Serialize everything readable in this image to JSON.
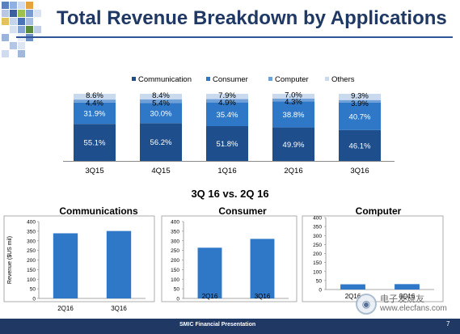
{
  "slide": {
    "title": "Total Revenue Breakdown by Applications",
    "comparison_heading": "3Q 16 vs. 2Q 16",
    "footer": "SMIC Financial Presentation",
    "page_number": "7",
    "watermark_cn": "电子发烧友",
    "watermark_url": "www.elecfans.com"
  },
  "colors": {
    "title_text": "#1f3864",
    "title_rule": "#2f5597",
    "communication": "#1f4e8c",
    "consumer": "#2f78c8",
    "computer": "#6fa0d8",
    "others": "#c9d9ee",
    "footer_bar": "#1f3864"
  },
  "chart_data": [
    {
      "type": "bar",
      "stacked": true,
      "categories": [
        "3Q15",
        "4Q15",
        "1Q16",
        "2Q16",
        "3Q16"
      ],
      "series": [
        {
          "name": "Communication",
          "values": [
            55.1,
            56.2,
            51.8,
            49.9,
            46.1
          ],
          "labels": [
            "55.1%",
            "56.2%",
            "51.8%",
            "49.9%",
            "46.1%"
          ]
        },
        {
          "name": "Consumer",
          "values": [
            31.9,
            30.0,
            35.4,
            38.8,
            40.7
          ],
          "labels": [
            "31.9%",
            "30.0%",
            "35.4%",
            "38.8%",
            "40.7%"
          ]
        },
        {
          "name": "Computer",
          "values": [
            4.4,
            5.4,
            4.9,
            4.3,
            3.9
          ],
          "labels": [
            "4.4%",
            "5.4%",
            "4.9%",
            "4.3%",
            "3.9%"
          ]
        },
        {
          "name": "Others",
          "values": [
            8.6,
            8.4,
            7.9,
            7.0,
            9.3
          ],
          "labels": [
            "8.6%",
            "8.4%",
            "7.9%",
            "7.0%",
            "9.3%"
          ]
        }
      ],
      "ylim": [
        0,
        100
      ],
      "legend": "top-right"
    },
    {
      "type": "bar",
      "title": "Communications",
      "ylabel": "Revenue ($US mil)",
      "categories": [
        "2Q16",
        "3Q16"
      ],
      "values": [
        339,
        351
      ],
      "ylim": [
        0,
        400
      ],
      "yticks": [
        "0",
        "50",
        "100",
        "150",
        "200",
        "250",
        "300",
        "350",
        "400"
      ]
    },
    {
      "type": "bar",
      "title": "Consumer",
      "categories": [
        "2Q16",
        "3Q16"
      ],
      "values": [
        264,
        310
      ],
      "ylim": [
        0,
        400
      ],
      "yticks": [
        "0",
        "50",
        "100",
        "150",
        "200",
        "250",
        "300",
        "350",
        "400"
      ]
    },
    {
      "type": "bar",
      "title": "Computer",
      "categories": [
        "2Q16",
        "3Q16"
      ],
      "values": [
        29,
        30
      ],
      "ylim": [
        0,
        400
      ],
      "yticks": [
        "0",
        "50",
        "100",
        "150",
        "200",
        "250",
        "300",
        "350",
        "400"
      ]
    }
  ]
}
